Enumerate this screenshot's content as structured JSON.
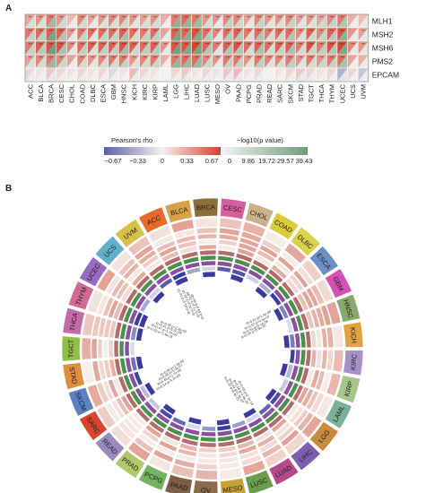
{
  "panels": {
    "a_label": "A",
    "b_label": "B"
  },
  "chart_data": [
    {
      "type": "heatmap",
      "genes": [
        "MLH1",
        "MSH2",
        "MSH6",
        "PMS2",
        "EPCAM"
      ],
      "cancers": [
        "ACC",
        "BLCA",
        "BRCA",
        "CESC",
        "CHOL",
        "COAD",
        "DLBC",
        "ESCA",
        "GBM",
        "HNSC",
        "KICH",
        "KIRC",
        "KIRP",
        "LAML",
        "LGG",
        "LIHC",
        "LUAD",
        "LUSC",
        "MESO",
        "OV",
        "PAAD",
        "PCPG",
        "PRAD",
        "READ",
        "SARC",
        "SKCM",
        "STAD",
        "TGCT",
        "THCA",
        "THYM",
        "UCEC",
        "UCS",
        "UVM"
      ],
      "rho": [
        [
          0.3,
          0.35,
          0.45,
          0.35,
          0.2,
          0.4,
          0.3,
          0.35,
          0.4,
          0.4,
          0.35,
          0.3,
          0.35,
          0.25,
          0.45,
          0.5,
          0.45,
          0.35,
          0.35,
          0.4,
          0.4,
          0.3,
          0.4,
          0.35,
          0.35,
          0.4,
          0.3,
          0.35,
          0.3,
          0.4,
          0.45,
          0.25,
          0.2
        ],
        [
          0.45,
          0.5,
          0.55,
          0.55,
          0.35,
          0.45,
          0.5,
          0.5,
          0.5,
          0.55,
          0.5,
          0.45,
          0.5,
          0.3,
          0.55,
          0.55,
          0.6,
          0.5,
          0.4,
          0.5,
          0.55,
          0.45,
          0.5,
          0.45,
          0.5,
          0.5,
          0.4,
          0.55,
          0.4,
          0.55,
          0.6,
          0.35,
          0.3
        ],
        [
          0.45,
          0.55,
          0.6,
          0.6,
          0.4,
          0.5,
          0.55,
          0.55,
          0.55,
          0.6,
          0.55,
          0.5,
          0.55,
          0.35,
          0.6,
          0.6,
          0.65,
          0.55,
          0.45,
          0.55,
          0.6,
          0.5,
          0.55,
          0.5,
          0.55,
          0.55,
          0.45,
          0.6,
          0.45,
          0.6,
          0.65,
          0.4,
          0.35
        ],
        [
          0.3,
          0.4,
          0.45,
          0.4,
          0.3,
          0.4,
          0.35,
          0.4,
          0.45,
          0.45,
          0.35,
          0.4,
          0.45,
          0.25,
          0.45,
          0.5,
          0.5,
          0.4,
          0.35,
          0.45,
          0.45,
          0.35,
          0.45,
          0.4,
          0.4,
          0.45,
          0.35,
          0.45,
          0.35,
          0.45,
          0.5,
          0.3,
          0.25
        ],
        [
          0.1,
          -0.05,
          0.15,
          0.1,
          0.05,
          0.1,
          0.05,
          0.1,
          -0.1,
          0.05,
          0.2,
          0.1,
          0.05,
          0.0,
          0.1,
          0.15,
          0.05,
          0.1,
          -0.05,
          0.15,
          0.2,
          0.05,
          0.1,
          0.0,
          0.05,
          0.1,
          0.15,
          0.1,
          0.05,
          0.1,
          -0.3,
          0.1,
          -0.2
        ]
      ],
      "neglogp": [
        [
          9,
          8,
          25,
          12,
          3,
          10,
          4,
          8,
          9,
          12,
          6,
          9,
          10,
          2,
          30,
          28,
          25,
          10,
          4,
          14,
          12,
          5,
          14,
          6,
          8,
          14,
          6,
          8,
          12,
          14,
          20,
          2,
          3
        ],
        [
          14,
          16,
          36,
          20,
          4,
          14,
          6,
          14,
          14,
          22,
          10,
          14,
          16,
          3,
          36,
          32,
          34,
          18,
          5,
          18,
          18,
          8,
          20,
          9,
          12,
          20,
          8,
          12,
          14,
          18,
          30,
          3,
          4
        ],
        [
          14,
          18,
          38,
          22,
          5,
          16,
          8,
          16,
          16,
          24,
          12,
          16,
          18,
          4,
          38,
          34,
          36,
          20,
          6,
          20,
          20,
          10,
          22,
          10,
          14,
          22,
          10,
          14,
          16,
          20,
          34,
          4,
          5
        ],
        [
          8,
          10,
          26,
          12,
          3,
          10,
          5,
          10,
          10,
          14,
          7,
          10,
          12,
          2,
          28,
          26,
          26,
          12,
          4,
          14,
          14,
          6,
          16,
          6,
          9,
          16,
          6,
          10,
          12,
          14,
          22,
          2,
          3
        ],
        [
          2,
          1,
          4,
          2,
          1,
          2,
          1,
          2,
          2,
          1,
          3,
          2,
          1,
          0,
          2,
          3,
          1,
          2,
          1,
          3,
          3,
          1,
          2,
          0,
          1,
          2,
          3,
          2,
          1,
          2,
          5,
          1,
          2
        ]
      ],
      "stars": "***",
      "legend_rho": {
        "title": "Pearson's rho",
        "ticks": [
          "−0.67",
          "−0.33",
          "0",
          "0.33",
          "0.67"
        ],
        "colors": {
          "negative": "#5d5fa8",
          "neutral": "#f4f0ee",
          "positive": "#d8402e"
        }
      },
      "legend_p": {
        "title": "−log10(p value)",
        "ticks": [
          "0",
          "9.86",
          "19.72",
          "29.57",
          "39.43"
        ],
        "colors": {
          "low": "#f2f2f2",
          "high": "#6e9c7c"
        }
      }
    },
    {
      "type": "heatmap",
      "layout": "circular",
      "segments": [
        {
          "name": "ACC",
          "color": "#e86a2a"
        },
        {
          "name": "BLCA",
          "color": "#d7a14a"
        },
        {
          "name": "BRCA",
          "color": "#8c6d3c"
        },
        {
          "name": "CESC",
          "color": "#d65f9b"
        },
        {
          "name": "CHOL",
          "color": "#c9b18a"
        },
        {
          "name": "COAD",
          "color": "#d9cb3a"
        },
        {
          "name": "DLBC",
          "color": "#d9d246"
        },
        {
          "name": "ESCA",
          "color": "#6c8fc9"
        },
        {
          "name": "GBM",
          "color": "#d54fb5"
        },
        {
          "name": "HNSC",
          "color": "#87a96a"
        },
        {
          "name": "KICH",
          "color": "#e1a242"
        },
        {
          "name": "KIRC",
          "color": "#a692c9"
        },
        {
          "name": "KIRP",
          "color": "#a6c58c"
        },
        {
          "name": "LAML",
          "color": "#7bb09a"
        },
        {
          "name": "LGG",
          "color": "#c98a3e"
        },
        {
          "name": "LIHC",
          "color": "#7c5fb0"
        },
        {
          "name": "LUAD",
          "color": "#b54a8a"
        },
        {
          "name": "LUSC",
          "color": "#6a9e4c"
        },
        {
          "name": "MESO",
          "color": "#c6a23a"
        },
        {
          "name": "OV",
          "color": "#8a6b4a"
        },
        {
          "name": "PAAD",
          "color": "#7d5e45"
        },
        {
          "name": "PCPG",
          "color": "#73b25e"
        },
        {
          "name": "PRAD",
          "color": "#b2c76a"
        },
        {
          "name": "READ",
          "color": "#9a8ac2"
        },
        {
          "name": "SARC",
          "color": "#d9452d"
        },
        {
          "name": "SKCM",
          "color": "#5d7fc4"
        },
        {
          "name": "STAD",
          "color": "#e08d3c"
        },
        {
          "name": "TGCT",
          "color": "#8fbf4a"
        },
        {
          "name": "THCA",
          "color": "#c46aa8"
        },
        {
          "name": "THYM",
          "color": "#cf6a90"
        },
        {
          "name": "UCEC",
          "color": "#9a6ac0"
        },
        {
          "name": "UCS",
          "color": "#5fb0c8"
        },
        {
          "name": "UVM",
          "color": "#d6c04a"
        }
      ],
      "ring_colors": [
        "#e3a295",
        "#b56a6a",
        "#4a8f4a",
        "#8a4fa0",
        "#3a3aa0"
      ],
      "segment_annotations": [
        {
          "segment": "ACC",
          "labels": [
            "R=0.81 p=3.1e-12",
            "R=0.76 p=2.4e-10",
            "R=0.72 p=1.1e-09",
            "R=0.69 p=5.6e-08"
          ]
        },
        {
          "segment": "LUAD",
          "labels": [
            "R=0.63 p=2.2e-16",
            "R=0.58 p=1.4e-15",
            "R=0.41 p=2.1e-10",
            "R=0.37 p=6.4e-07"
          ]
        },
        {
          "segment": "SARC",
          "labels": [
            "R=0.54 p=4.2e-09",
            "R=0.49 p=1.7e-08",
            "R=0.43 p=3.3e-07",
            "R=0.38 p=1.9e-06"
          ]
        },
        {
          "segment": "THYM",
          "labels": [
            "R=0.52 p=2.4e-05",
            "R=0.47 p=1.1e-04",
            "R=0.41 p=5.2e-04",
            "R=0.35 p=2.8e-03"
          ]
        },
        {
          "segment": "GBM",
          "labels": [
            "R=0.61 p=1.4e-08",
            "R=0.57 p=4.6e-07",
            "R=0.51 p=2.1e-06",
            "R=0.44 p=3.9e-05"
          ]
        }
      ]
    }
  ]
}
